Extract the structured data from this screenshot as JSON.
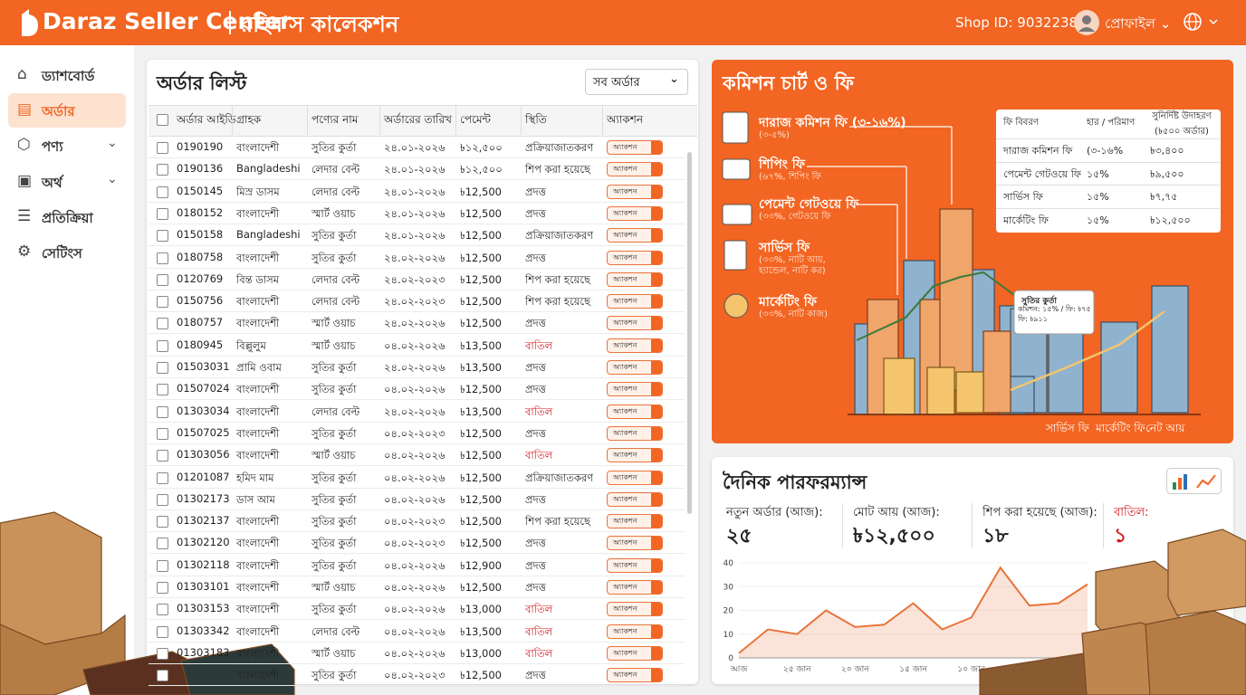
{
  "header": {
    "logo": "Daraz Seller Center",
    "shop_name": "রহিম'স কালেকশন",
    "shop_id": "Shop ID: 9032238",
    "user": "প্রোফাইল"
  },
  "sidebar": {
    "items": [
      "ড্যাশবোর্ড",
      "অর্ডার",
      "পণ্য",
      "অর্থ",
      "প্রতিক্রিয়া",
      "সেটিংস"
    ]
  },
  "orders": {
    "title": "অর্ডার লিস্ট",
    "filter": "সব অর্ডার",
    "action_label": "অ্যাকশন",
    "columns": [
      "অর্ডার আইডি",
      "গ্রাহক",
      "পণ্যের নাম",
      "অর্ডারের তারিখ",
      "পেমেন্ট",
      "স্থিতি",
      "অ্যাকশন"
    ],
    "rows": [
      {
        "id": "0190190",
        "customer": "বাংলাদেশী",
        "product": "সুতির কুর্তা",
        "date": "২৪.০১-২০২৬",
        "payment": "৳১২,৫০০",
        "status": "প্রক্রিয়াজাতকরণ",
        "status_color": "#222222"
      },
      {
        "id": "0190136",
        "customer": "Bangladeshi",
        "product": "লেদার বেল্ট",
        "date": "২৪.০১-২০২৬",
        "payment": "৳১২,৫০০",
        "status": "শিপ করা হয়েছে",
        "status_color": "#222222"
      },
      {
        "id": "0150145",
        "customer": "মিস্র ডাসম",
        "product": "লেদার বেল্ট",
        "date": "২৪.০১-২০২৬",
        "payment": "৳12,500",
        "status": "প্রদত্ত",
        "status_color": "#222222"
      },
      {
        "id": "0180152",
        "customer": "বাংলাদেশী",
        "product": "স্মার্ট ওয়াচ",
        "date": "২৪.০১-২০২৬",
        "payment": "৳12,500",
        "status": "প্রদত্ত",
        "status_color": "#222222"
      },
      {
        "id": "0150158",
        "customer": "Bangladeshi",
        "product": "সুতির কুর্তা",
        "date": "২৪.০১-২০২৬",
        "payment": "৳12,500",
        "status": "প্রক্রিয়াজাতকরণ",
        "status_color": "#222222"
      },
      {
        "id": "0180758",
        "customer": "বাংলাদেশী",
        "product": "সুতির কুর্তা",
        "date": "২৪.০২-২০২৬",
        "payment": "৳12,500",
        "status": "প্রদত্ত",
        "status_color": "#222222"
      },
      {
        "id": "0120769",
        "customer": "বিন্ত ডাসম",
        "product": "লেদার বেল্ট",
        "date": "২৪.০২-২০২৩",
        "payment": "৳12,500",
        "status": "শিপ করা হয়েছে",
        "status_color": "#222222"
      },
      {
        "id": "0150756",
        "customer": "বাংলাদেশী",
        "product": "লেদার বেল্ট",
        "date": "২৪.০২-২০২৩",
        "payment": "৳12,500",
        "status": "শিপ করা হয়েছে",
        "status_color": "#222222"
      },
      {
        "id": "0180757",
        "customer": "বাংলাদেশী",
        "product": "স্মার্ট ওয়াচ",
        "date": "২৪.০২-২০২৬",
        "payment": "৳12,500",
        "status": "প্রদত্ত",
        "status_color": "#222222"
      },
      {
        "id": "0180945",
        "customer": "বিল্লুলুম",
        "product": "স্মার্ট ওয়াচ",
        "date": "০৪.০২-২০২৬",
        "payment": "৳13,500",
        "status": "বাতিল",
        "status_color": "#d4161c"
      },
      {
        "id": "01503031",
        "customer": "প্রামি ওবাম",
        "product": "সুতির কুর্তা",
        "date": "২৪.০২-২০২৬",
        "payment": "৳13,500",
        "status": "প্রদত্ত",
        "status_color": "#222222"
      },
      {
        "id": "01507024",
        "customer": "বাংলাদেশী",
        "product": "সুতির কুর্তা",
        "date": "০৪.০২-২০২৬",
        "payment": "৳12,500",
        "status": "প্রদত্ত",
        "status_color": "#222222"
      },
      {
        "id": "01303034",
        "customer": "বাংলাদেশী",
        "product": "লেদার বেল্ট",
        "date": "২৪.০২-২০২৬",
        "payment": "৳13,500",
        "status": "বাতিল",
        "status_color": "#d4161c"
      },
      {
        "id": "01507025",
        "customer": "বাংলাদেশী",
        "product": "সুতির কুর্তা",
        "date": "০৪.০২-২০২৩",
        "payment": "৳12,500",
        "status": "প্রদত্ত",
        "status_color": "#222222"
      },
      {
        "id": "01303056",
        "customer": "বাংলাদেশী",
        "product": "স্মার্ট ওয়াচ",
        "date": "০৪.০২-২০২৬",
        "payment": "৳12,500",
        "status": "বাতিল",
        "status_color": "#d4161c"
      },
      {
        "id": "01201087",
        "customer": "হমিদ মাম",
        "product": "সুতির কুর্তা",
        "date": "০৪.০২-২০২৬",
        "payment": "৳12,500",
        "status": "প্রক্রিয়াজাতকরণ",
        "status_color": "#222222"
      },
      {
        "id": "01302173",
        "customer": "ডাস আম",
        "product": "সুতির কুর্তা",
        "date": "০৪.০২-২০২৬",
        "payment": "৳12,500",
        "status": "প্রদত্ত",
        "status_color": "#222222"
      },
      {
        "id": "01302137",
        "customer": "বাংলাদেশী",
        "product": "সুতির কুর্তা",
        "date": "০৪.০২-২০২৩",
        "payment": "৳12,500",
        "status": "শিপ করা হয়েছে",
        "status_color": "#222222"
      },
      {
        "id": "01302120",
        "customer": "বাংলাদেশী",
        "product": "সুতির কুর্তা",
        "date": "০৪.০২-২০২৩",
        "payment": "৳12,500",
        "status": "প্রদত্ত",
        "status_color": "#222222"
      },
      {
        "id": "01302118",
        "customer": "বাংলাদেশী",
        "product": "সুতির কুর্তা",
        "date": "০৪.০২-২০২৬",
        "payment": "৳12,900",
        "status": "প্রদত্ত",
        "status_color": "#222222"
      },
      {
        "id": "01303101",
        "customer": "বাংলাদেশী",
        "product": "স্মার্ট ওয়াচ",
        "date": "০৪.০২-২০২৬",
        "payment": "৳12,500",
        "status": "প্রদত্ত",
        "status_color": "#222222"
      },
      {
        "id": "01303153",
        "customer": "বাংলাদেশী",
        "product": "সুতির কুর্তা",
        "date": "০৪.০২-২০২৬",
        "payment": "৳13,000",
        "status": "বাতিল",
        "status_color": "#d4161c"
      },
      {
        "id": "01303342",
        "customer": "বাংলাদেশী",
        "product": "লেদার বেল্ট",
        "date": "০৪.০২-২০২৬",
        "payment": "৳13,500",
        "status": "বাতিল",
        "status_color": "#d4161c"
      },
      {
        "id": "01303183",
        "customer": "বাংলাদেশী",
        "product": "স্মার্ট ওয়াচ",
        "date": "০৪.০২-২০২৬",
        "payment": "৳13,000",
        "status": "বাতিল",
        "status_color": "#d4161c"
      },
      {
        "id": null,
        "customer": "বাংলাদেশী",
        "product": "সুতির কুর্তা",
        "date": "০৪.০২-২০২৩",
        "payment": "৳12,500",
        "status": "প্রদত্ত",
        "status_color": "#222222"
      }
    ]
  },
  "commission": {
    "title": "কমিশন চার্ট ও ফি",
    "fees": [
      {
        "name": "দারাজ কমিশন ফি (৩-১৬%)",
        "note": "(৩-৫%)"
      },
      {
        "name": "শিপিং ফি",
        "note": "(৬৭%, শিপিং ফি"
      },
      {
        "name": "পেমেন্ট গেটওয়ে ফি",
        "note": "(৩৩%, গেটওয়ে ফি"
      },
      {
        "name": "সার্ভিস ফি",
        "note": "(৩৩%, নাটি আয়, হ্যান্ডেল, নাটি কর)"
      },
      {
        "name": "মার্কেটিং ফি",
        "note": "(৩৩%, নাটি কাজ)"
      }
    ],
    "table": {
      "columns": [
        "ফি বিবরণ",
        "হার / পরিমাণ",
        "সুনির্দিষ্ট উদাহরণ (৳৫০০ অর্ডার)"
      ],
      "rows": [
        [
          "দারাজ কমিশন ফি",
          "(৩-১৬%",
          "৳৩,৪০০"
        ],
        [
          "পেমেন্ট গেটওয়ে ফি",
          "১৫%",
          "৳৯,৫০০"
        ],
        [
          "সার্ভিস ফি",
          "১৫%",
          "৳৭,৭৫"
        ],
        [
          "মার্কেটিং ফি",
          "১৫%",
          "৳১২,৫০০"
        ]
      ]
    },
    "callout": [
      "সুতির কুর্তা",
      "কমিশন: ১৫% / ফি: ৳৭৫",
      "ফি: ৳৯১১"
    ],
    "axis_labels": [
      "সার্ভিস ফি",
      "মার্কেটিং ফি",
      "নেট আয়"
    ]
  },
  "performance": {
    "title": "দৈনিক পারফরম্যান্স",
    "stats": [
      {
        "label": "নতুন অর্ডার (আজ):",
        "value": "২৫"
      },
      {
        "label": "মোট আয় (আজ):",
        "value": "৳১২,৫০০"
      },
      {
        "label": "শিপ করা হয়েছে (আজ):",
        "value": "১৮"
      },
      {
        "label": "বাতিল:",
        "value": "১"
      }
    ],
    "chart": {
      "type": "area",
      "color": "#e8743b",
      "categories": [
        "আজ",
        null,
        "২৫ জান",
        null,
        "২০ জান",
        null,
        "১৫ জান",
        null,
        "১০ জান",
        null,
        null,
        null,
        null
      ],
      "values": [
        2,
        12,
        10,
        20,
        13,
        14,
        23,
        12,
        17,
        38,
        22,
        23,
        31
      ],
      "ylim": [
        0,
        40
      ],
      "yticks": [
        0,
        10,
        20,
        30,
        40
      ]
    }
  }
}
